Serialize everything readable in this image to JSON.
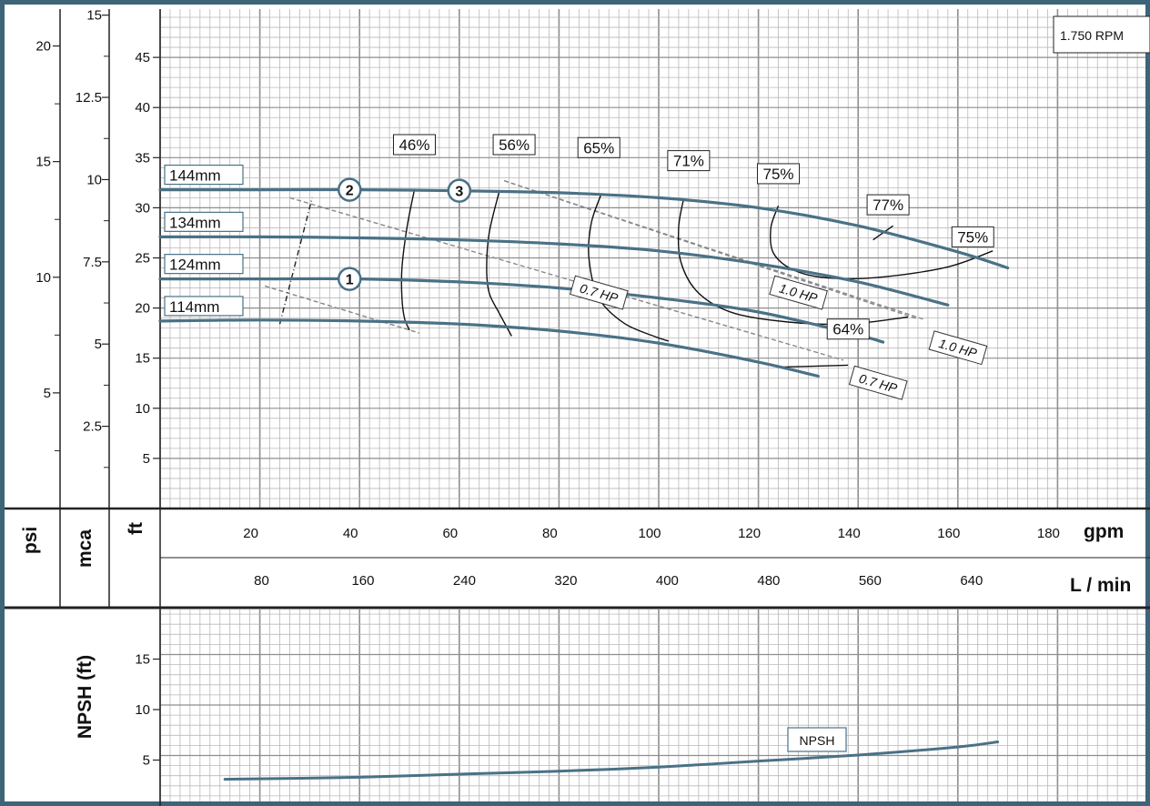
{
  "chart_data": {
    "type": "line",
    "speed_label": "1.750 RPM",
    "colors": {
      "curve": "#4a7186",
      "frame": "#3d6478",
      "grid": "#b9b9b9",
      "grid_major": "#8e8e8e"
    },
    "axes": {
      "gpm": {
        "label": "gpm",
        "ticks": [
          20,
          40,
          60,
          80,
          100,
          120,
          140,
          160,
          180
        ],
        "range": [
          0,
          180
        ]
      },
      "lmin": {
        "label": "L / min",
        "ticks": [
          80,
          160,
          240,
          320,
          400,
          480,
          560,
          640
        ]
      },
      "ft": {
        "label": "ft",
        "ticks": [
          5,
          10,
          15,
          20,
          25,
          30,
          35,
          40,
          45
        ],
        "range": [
          0,
          48
        ]
      },
      "mca": {
        "label": "mca",
        "ticks": [
          "2.5",
          "5",
          "7.5",
          "10",
          "12.5",
          "15"
        ]
      },
      "psi": {
        "label": "psi",
        "ticks": [
          "5",
          "10",
          "15",
          "20"
        ]
      },
      "npsh": {
        "label": "NPSH (ft)",
        "ticks": [
          5,
          10,
          15
        ],
        "range": [
          0,
          20
        ]
      }
    },
    "series": [
      {
        "name": "144mm",
        "x": [
          0,
          20,
          40,
          60,
          80,
          100,
          120,
          140,
          160,
          170
        ],
        "y": [
          31.8,
          31.8,
          31.8,
          31.7,
          31.5,
          31.0,
          30.0,
          28.2,
          25.6,
          24.0
        ]
      },
      {
        "name": "134mm",
        "x": [
          0,
          20,
          40,
          60,
          80,
          100,
          120,
          140,
          158
        ],
        "y": [
          27.1,
          27.1,
          27.0,
          26.8,
          26.4,
          25.7,
          24.4,
          22.6,
          20.3
        ]
      },
      {
        "name": "124mm",
        "x": [
          0,
          20,
          40,
          60,
          80,
          100,
          120,
          140,
          145
        ],
        "y": [
          22.9,
          22.9,
          22.9,
          22.6,
          22.0,
          21.0,
          19.6,
          17.3,
          16.6
        ]
      },
      {
        "name": "114mm",
        "x": [
          0,
          20,
          40,
          60,
          80,
          100,
          120,
          132
        ],
        "y": [
          18.7,
          18.8,
          18.7,
          18.4,
          17.7,
          16.5,
          14.6,
          13.2
        ]
      }
    ],
    "efficiency_labels": [
      {
        "text": "46%",
        "x": 51,
        "y": 36.3
      },
      {
        "text": "56%",
        "x": 71,
        "y": 36.3
      },
      {
        "text": "65%",
        "x": 88,
        "y": 36.0
      },
      {
        "text": "71%",
        "x": 106,
        "y": 34.7
      },
      {
        "text": "75%",
        "x": 124,
        "y": 33.4
      },
      {
        "text": "77%",
        "x": 146,
        "y": 30.3
      },
      {
        "text": "75%",
        "x": 163,
        "y": 27.1
      },
      {
        "text": "64%",
        "x": 138,
        "y": 17.9
      }
    ],
    "efficiency_curves": [
      {
        "x": [
          51,
          49.5,
          48.5,
          48.5,
          49,
          50
        ],
        "y": [
          31.8,
          28,
          24,
          21,
          19,
          17.8
        ]
      },
      {
        "x": [
          68,
          66,
          65.5,
          66,
          68,
          70.5
        ],
        "y": [
          31.6,
          27.5,
          24,
          21.5,
          19.5,
          17.2
        ]
      },
      {
        "x": [
          88.5,
          86.5,
          86,
          88,
          93,
          99,
          102
        ],
        "y": [
          31.4,
          28.5,
          25,
          21,
          18.5,
          17.2,
          16.7
        ]
      },
      {
        "x": [
          105,
          104,
          104.5,
          108,
          115,
          126,
          138,
          150
        ],
        "y": [
          30.9,
          28,
          24.5,
          21.5,
          19.5,
          18.6,
          18.4,
          19.1
        ]
      },
      {
        "x": [
          124,
          122.5,
          123,
          127,
          134,
          145,
          158,
          167
        ],
        "y": [
          30.2,
          28,
          25.5,
          23.8,
          23.0,
          23.1,
          24.1,
          25.7
        ]
      },
      {
        "x": [
          143,
          147
        ],
        "y": [
          26.8,
          28.2
        ]
      },
      {
        "x": [
          124,
          138
        ],
        "y": [
          14.1,
          14.3
        ]
      }
    ],
    "power_lines": [
      {
        "label": "0.7 HP",
        "x": [
          21,
          52
        ],
        "y": [
          22.2,
          17.5
        ],
        "label_at": {
          "x": 88,
          "y": 21.5
        }
      },
      {
        "label": "0.7 HP",
        "x": [
          26,
          137
        ],
        "y": [
          31.0,
          14.8
        ],
        "label_at": {
          "x": 144,
          "y": 12.5
        }
      },
      {
        "label": "1.0 HP",
        "x": [
          69,
          153
        ],
        "y": [
          32.7,
          18.9
        ],
        "label_at": {
          "x": 128,
          "y": 21.5
        }
      },
      {
        "label": "1.0 HP",
        "x": [
          69,
          152
        ],
        "y": [
          32.7,
          18.9
        ],
        "label_at": {
          "x": 160,
          "y": 16.0
        }
      }
    ],
    "min_diameter_line": {
      "x": [
        24,
        30.5
      ],
      "y": [
        18.4,
        31.0
      ]
    },
    "duty_points": [
      {
        "label": "1",
        "x": 38,
        "y": 22.9
      },
      {
        "label": "2",
        "x": 38,
        "y": 31.8
      },
      {
        "label": "3",
        "x": 60,
        "y": 31.7
      }
    ],
    "npsh_curve": {
      "name": "NPSH",
      "x": [
        13,
        40,
        60,
        80,
        100,
        120,
        140,
        160,
        168
      ],
      "y": [
        3.1,
        3.3,
        3.6,
        3.9,
        4.3,
        4.9,
        5.5,
        6.3,
        6.8
      ]
    }
  }
}
